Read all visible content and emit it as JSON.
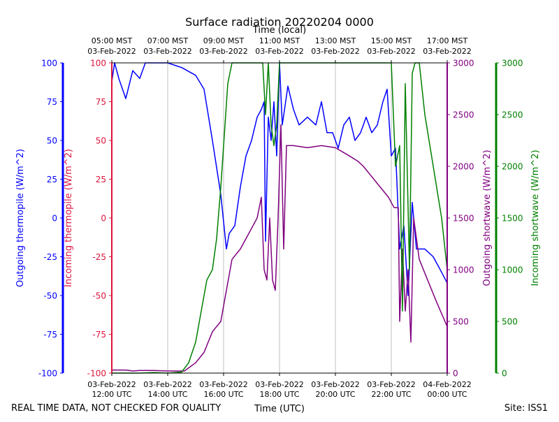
{
  "chart_data": {
    "type": "line",
    "title": "Surface radiation 20220204 0000",
    "top_axis_label": "Time (local)",
    "bottom_axis_label": "Time (UTC)",
    "footer_left": "REAL TIME DATA, NOT CHECKED FOR QUALITY",
    "footer_right": "Site: ISS1",
    "x_range_hours": [
      12,
      24
    ],
    "bottom_ticks": [
      {
        "h": 12,
        "line1": "03-Feb-2022",
        "line2": "12:00 UTC"
      },
      {
        "h": 14,
        "line1": "03-Feb-2022",
        "line2": "14:00 UTC"
      },
      {
        "h": 16,
        "line1": "03-Feb-2022",
        "line2": "16:00 UTC"
      },
      {
        "h": 18,
        "line1": "03-Feb-2022",
        "line2": "18:00 UTC"
      },
      {
        "h": 20,
        "line1": "03-Feb-2022",
        "line2": "20:00 UTC"
      },
      {
        "h": 22,
        "line1": "03-Feb-2022",
        "line2": "22:00 UTC"
      },
      {
        "h": 24,
        "line1": "04-Feb-2022",
        "line2": "00:00 UTC"
      }
    ],
    "top_ticks": [
      {
        "h": 12,
        "line1": "05:00 MST",
        "line2": "03-Feb-2022"
      },
      {
        "h": 14,
        "line1": "07:00 MST",
        "line2": "03-Feb-2022"
      },
      {
        "h": 16,
        "line1": "09:00 MST",
        "line2": "03-Feb-2022"
      },
      {
        "h": 18,
        "line1": "11:00 MST",
        "line2": "03-Feb-2022"
      },
      {
        "h": 20,
        "line1": "13:00 MST",
        "line2": "03-Feb-2022"
      },
      {
        "h": 22,
        "line1": "15:00 MST",
        "line2": "03-Feb-2022"
      },
      {
        "h": 24,
        "line1": "17:00 MST",
        "line2": "03-Feb-2022"
      }
    ],
    "axes": {
      "outgoing_thermopile": {
        "label": "Outgoing thermopile (W/m^2)",
        "color": "#0000ff",
        "ylim": [
          -100,
          100
        ],
        "ticks": [
          100,
          75,
          50,
          25,
          0,
          -25,
          -50,
          -75,
          -100
        ]
      },
      "incoming_thermopile": {
        "label": "Incoming thermopile (W/m^2)",
        "color": "#dc143c",
        "ylim": [
          -100,
          100
        ],
        "ticks": [
          100,
          75,
          50,
          25,
          0,
          -25,
          -50,
          -75,
          -100
        ]
      },
      "outgoing_shortwave": {
        "label": "Outgoing shortwave (W/m^2)",
        "color": "#800080",
        "ylim": [
          0,
          3000
        ],
        "ticks": [
          3000,
          2500,
          2000,
          1500,
          1000,
          500,
          0
        ]
      },
      "incoming_shortwave": {
        "label": "Incoming shortwave (W/m^2)",
        "color": "#008000",
        "ylim": [
          0,
          3000
        ],
        "ticks": [
          3000,
          2500,
          2000,
          1500,
          1000,
          500,
          0
        ]
      }
    },
    "series": [
      {
        "name": "Outgoing thermopile",
        "axis": "outgoing_thermopile",
        "color": "#0000ff",
        "points": [
          [
            12.0,
            88
          ],
          [
            12.1,
            100
          ],
          [
            12.25,
            90
          ],
          [
            12.5,
            77
          ],
          [
            12.75,
            95
          ],
          [
            13.0,
            90
          ],
          [
            13.2,
            100
          ],
          [
            14.0,
            100
          ],
          [
            14.5,
            97
          ],
          [
            15.0,
            92
          ],
          [
            15.3,
            83
          ],
          [
            15.6,
            50
          ],
          [
            15.9,
            15
          ],
          [
            16.1,
            -20
          ],
          [
            16.2,
            -10
          ],
          [
            16.4,
            -5
          ],
          [
            16.6,
            20
          ],
          [
            16.8,
            40
          ],
          [
            17.0,
            50
          ],
          [
            17.2,
            65
          ],
          [
            17.35,
            70
          ],
          [
            17.45,
            75
          ],
          [
            17.5,
            -15
          ],
          [
            17.6,
            65
          ],
          [
            17.7,
            50
          ],
          [
            17.8,
            75
          ],
          [
            17.9,
            40
          ],
          [
            18.0,
            100
          ],
          [
            18.1,
            60
          ],
          [
            18.3,
            85
          ],
          [
            18.5,
            70
          ],
          [
            18.7,
            60
          ],
          [
            19.0,
            65
          ],
          [
            19.3,
            60
          ],
          [
            19.5,
            75
          ],
          [
            19.7,
            55
          ],
          [
            19.9,
            55
          ],
          [
            20.1,
            45
          ],
          [
            20.3,
            60
          ],
          [
            20.5,
            65
          ],
          [
            20.7,
            50
          ],
          [
            20.9,
            55
          ],
          [
            21.1,
            65
          ],
          [
            21.3,
            55
          ],
          [
            21.5,
            60
          ],
          [
            21.7,
            75
          ],
          [
            21.85,
            83
          ],
          [
            22.0,
            40
          ],
          [
            22.15,
            45
          ],
          [
            22.3,
            -20
          ],
          [
            22.45,
            -5
          ],
          [
            22.6,
            -50
          ],
          [
            22.75,
            10
          ],
          [
            22.9,
            -20
          ],
          [
            23.2,
            -20
          ],
          [
            23.5,
            -25
          ],
          [
            23.8,
            -35
          ],
          [
            24.0,
            -42
          ]
        ]
      },
      {
        "name": "Outgoing shortwave",
        "axis": "outgoing_shortwave",
        "color": "#800080",
        "points": [
          [
            12.0,
            30
          ],
          [
            12.5,
            30
          ],
          [
            12.75,
            20
          ],
          [
            13.0,
            25
          ],
          [
            13.5,
            25
          ],
          [
            14.0,
            20
          ],
          [
            14.6,
            20
          ],
          [
            15.0,
            100
          ],
          [
            15.3,
            200
          ],
          [
            15.6,
            400
          ],
          [
            15.9,
            500
          ],
          [
            16.1,
            800
          ],
          [
            16.3,
            1100
          ],
          [
            16.6,
            1200
          ],
          [
            16.8,
            1300
          ],
          [
            17.0,
            1400
          ],
          [
            17.2,
            1500
          ],
          [
            17.35,
            1700
          ],
          [
            17.45,
            1000
          ],
          [
            17.55,
            900
          ],
          [
            17.65,
            1500
          ],
          [
            17.75,
            900
          ],
          [
            17.85,
            800
          ],
          [
            17.95,
            1500
          ],
          [
            18.05,
            2400
          ],
          [
            18.15,
            1200
          ],
          [
            18.25,
            2200
          ],
          [
            18.35,
            2200
          ],
          [
            18.5,
            2200
          ],
          [
            19.0,
            2180
          ],
          [
            19.5,
            2200
          ],
          [
            20.0,
            2180
          ],
          [
            20.5,
            2100
          ],
          [
            20.8,
            2050
          ],
          [
            21.0,
            2000
          ],
          [
            21.3,
            1900
          ],
          [
            21.6,
            1800
          ],
          [
            21.9,
            1700
          ],
          [
            22.1,
            1600
          ],
          [
            22.25,
            1600
          ],
          [
            22.3,
            500
          ],
          [
            22.4,
            1200
          ],
          [
            22.5,
            600
          ],
          [
            22.6,
            1000
          ],
          [
            22.7,
            300
          ],
          [
            22.8,
            1500
          ],
          [
            23.0,
            1100
          ],
          [
            23.3,
            900
          ],
          [
            23.6,
            700
          ],
          [
            24.0,
            450
          ]
        ]
      },
      {
        "name": "Incoming shortwave",
        "axis": "incoming_shortwave",
        "color": "#008000",
        "points": [
          [
            12.0,
            0
          ],
          [
            12.5,
            0
          ],
          [
            13.0,
            0
          ],
          [
            13.5,
            5
          ],
          [
            14.0,
            0
          ],
          [
            14.5,
            10
          ],
          [
            14.75,
            100
          ],
          [
            15.0,
            300
          ],
          [
            15.2,
            600
          ],
          [
            15.4,
            900
          ],
          [
            15.6,
            1000
          ],
          [
            15.75,
            1300
          ],
          [
            15.9,
            1800
          ],
          [
            16.0,
            2200
          ],
          [
            16.15,
            2800
          ],
          [
            16.3,
            3000
          ],
          [
            17.0,
            3000
          ],
          [
            17.4,
            3000
          ],
          [
            17.5,
            2500
          ],
          [
            17.6,
            3000
          ],
          [
            17.7,
            2400
          ],
          [
            17.8,
            2200
          ],
          [
            17.9,
            2400
          ],
          [
            18.0,
            3000
          ],
          [
            18.1,
            3000
          ],
          [
            22.0,
            3000
          ],
          [
            22.15,
            2000
          ],
          [
            22.3,
            2200
          ],
          [
            22.4,
            600
          ],
          [
            22.5,
            2800
          ],
          [
            22.65,
            1000
          ],
          [
            22.75,
            2900
          ],
          [
            22.85,
            3000
          ],
          [
            23.0,
            3000
          ],
          [
            23.2,
            2500
          ],
          [
            23.5,
            2000
          ],
          [
            23.8,
            1500
          ],
          [
            24.0,
            1000
          ]
        ]
      }
    ]
  }
}
